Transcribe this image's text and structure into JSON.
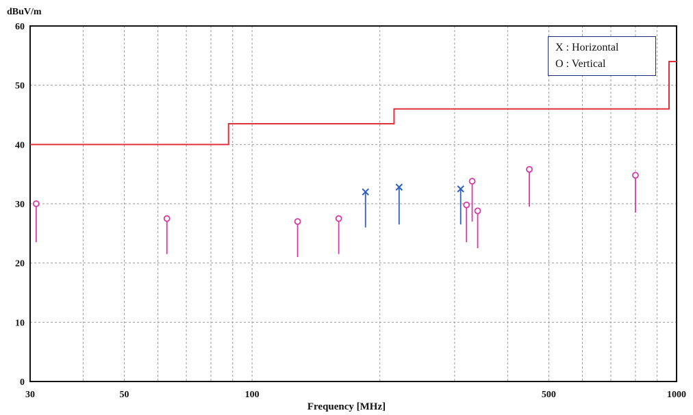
{
  "chart_data": {
    "type": "scatter",
    "ylabel": "dBuV/m",
    "xlabel": "Frequency [MHz]",
    "xscale": "log",
    "xlim": [
      30,
      1000
    ],
    "ylim": [
      0,
      60
    ],
    "x_ticks": [
      30,
      50,
      100,
      500,
      1000
    ],
    "y_ticks": [
      0,
      10,
      20,
      30,
      40,
      50,
      60
    ],
    "grid": true,
    "legend_position": "top-right",
    "legend": [
      "X : Horizontal",
      "O : Vertical"
    ],
    "colors": {
      "limit": "#e0303a",
      "horizontal": "#2e5fc4",
      "vertical": "#d63aa3",
      "grid": "#9a9a9a",
      "axes": "#111111"
    },
    "limit_line": {
      "name": "",
      "points": [
        [
          30,
          40
        ],
        [
          88,
          40
        ],
        [
          88,
          43.5
        ],
        [
          216,
          43.5
        ],
        [
          216,
          46
        ],
        [
          960,
          46
        ],
        [
          960,
          54
        ],
        [
          1000,
          54
        ]
      ]
    },
    "series": [
      {
        "name": "X : Horizontal",
        "marker": "x",
        "points": [
          [
            185,
            32,
            26
          ],
          [
            222,
            32.8,
            26.5
          ],
          [
            310,
            32.5,
            26.5
          ]
        ]
      },
      {
        "name": "O : Vertical",
        "marker": "o",
        "points": [
          [
            31,
            30,
            23.5
          ],
          [
            63,
            27.5,
            21.5
          ],
          [
            128,
            27,
            21
          ],
          [
            160,
            27.5,
            21.5
          ],
          [
            320,
            29.8,
            23.5
          ],
          [
            330,
            33.8,
            27
          ],
          [
            340,
            28.8,
            22.5
          ],
          [
            450,
            35.8,
            29.5
          ],
          [
            800,
            34.8,
            28.5
          ]
        ]
      }
    ]
  }
}
